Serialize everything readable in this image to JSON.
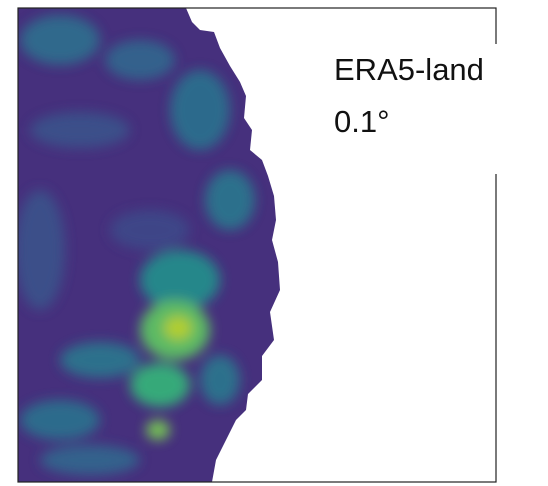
{
  "label": {
    "lines": [
      "ERA5-land",
      "0.1°"
    ]
  }
}
